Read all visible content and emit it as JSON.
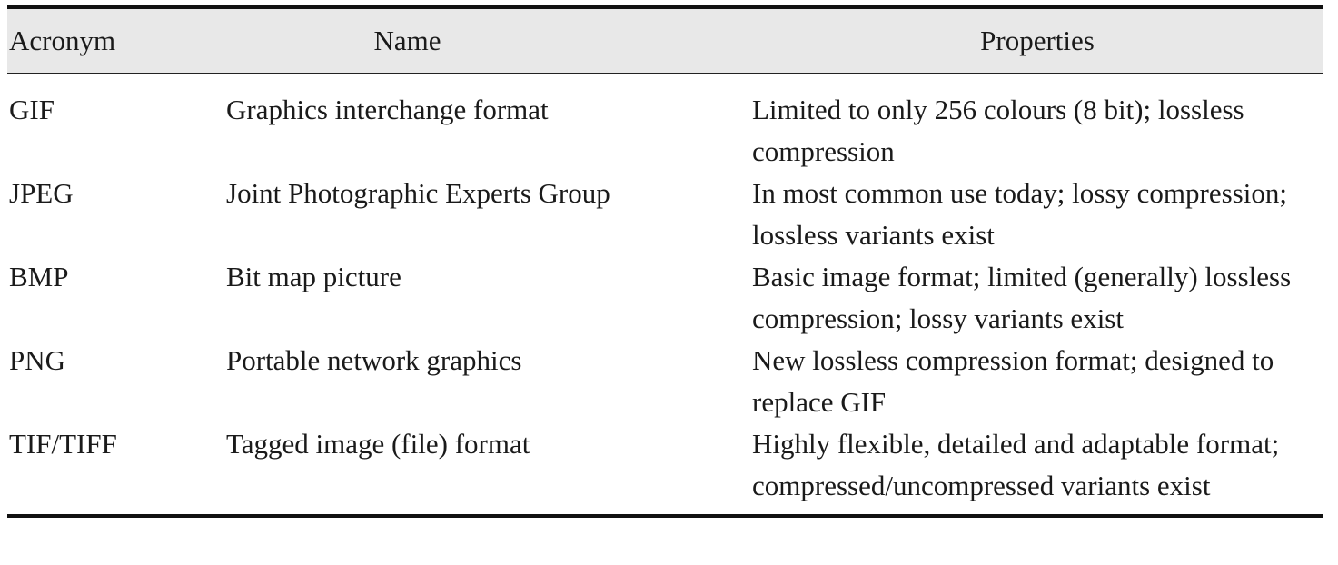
{
  "table": {
    "headers": {
      "acronym": "Acronym",
      "name": "Name",
      "properties": "Properties"
    },
    "rows": [
      {
        "acronym": "GIF",
        "name": "Graphics interchange format",
        "properties": "Limited to only 256 colours (8 bit); lossless compression"
      },
      {
        "acronym": "JPEG",
        "name": "Joint Photographic Experts Group",
        "properties": "In most common use today; lossy compression; lossless variants exist"
      },
      {
        "acronym": "BMP",
        "name": "Bit map picture",
        "properties": "Basic image format; limited (generally) lossless compression; lossy variants exist"
      },
      {
        "acronym": "PNG",
        "name": "Portable network graphics",
        "properties": "New lossless compression format; designed to replace GIF"
      },
      {
        "acronym": "TIF/TIFF",
        "name": "Tagged image (file) format",
        "properties": "Highly flexible, detailed and adaptable format; compressed/uncompressed variants exist"
      }
    ]
  }
}
